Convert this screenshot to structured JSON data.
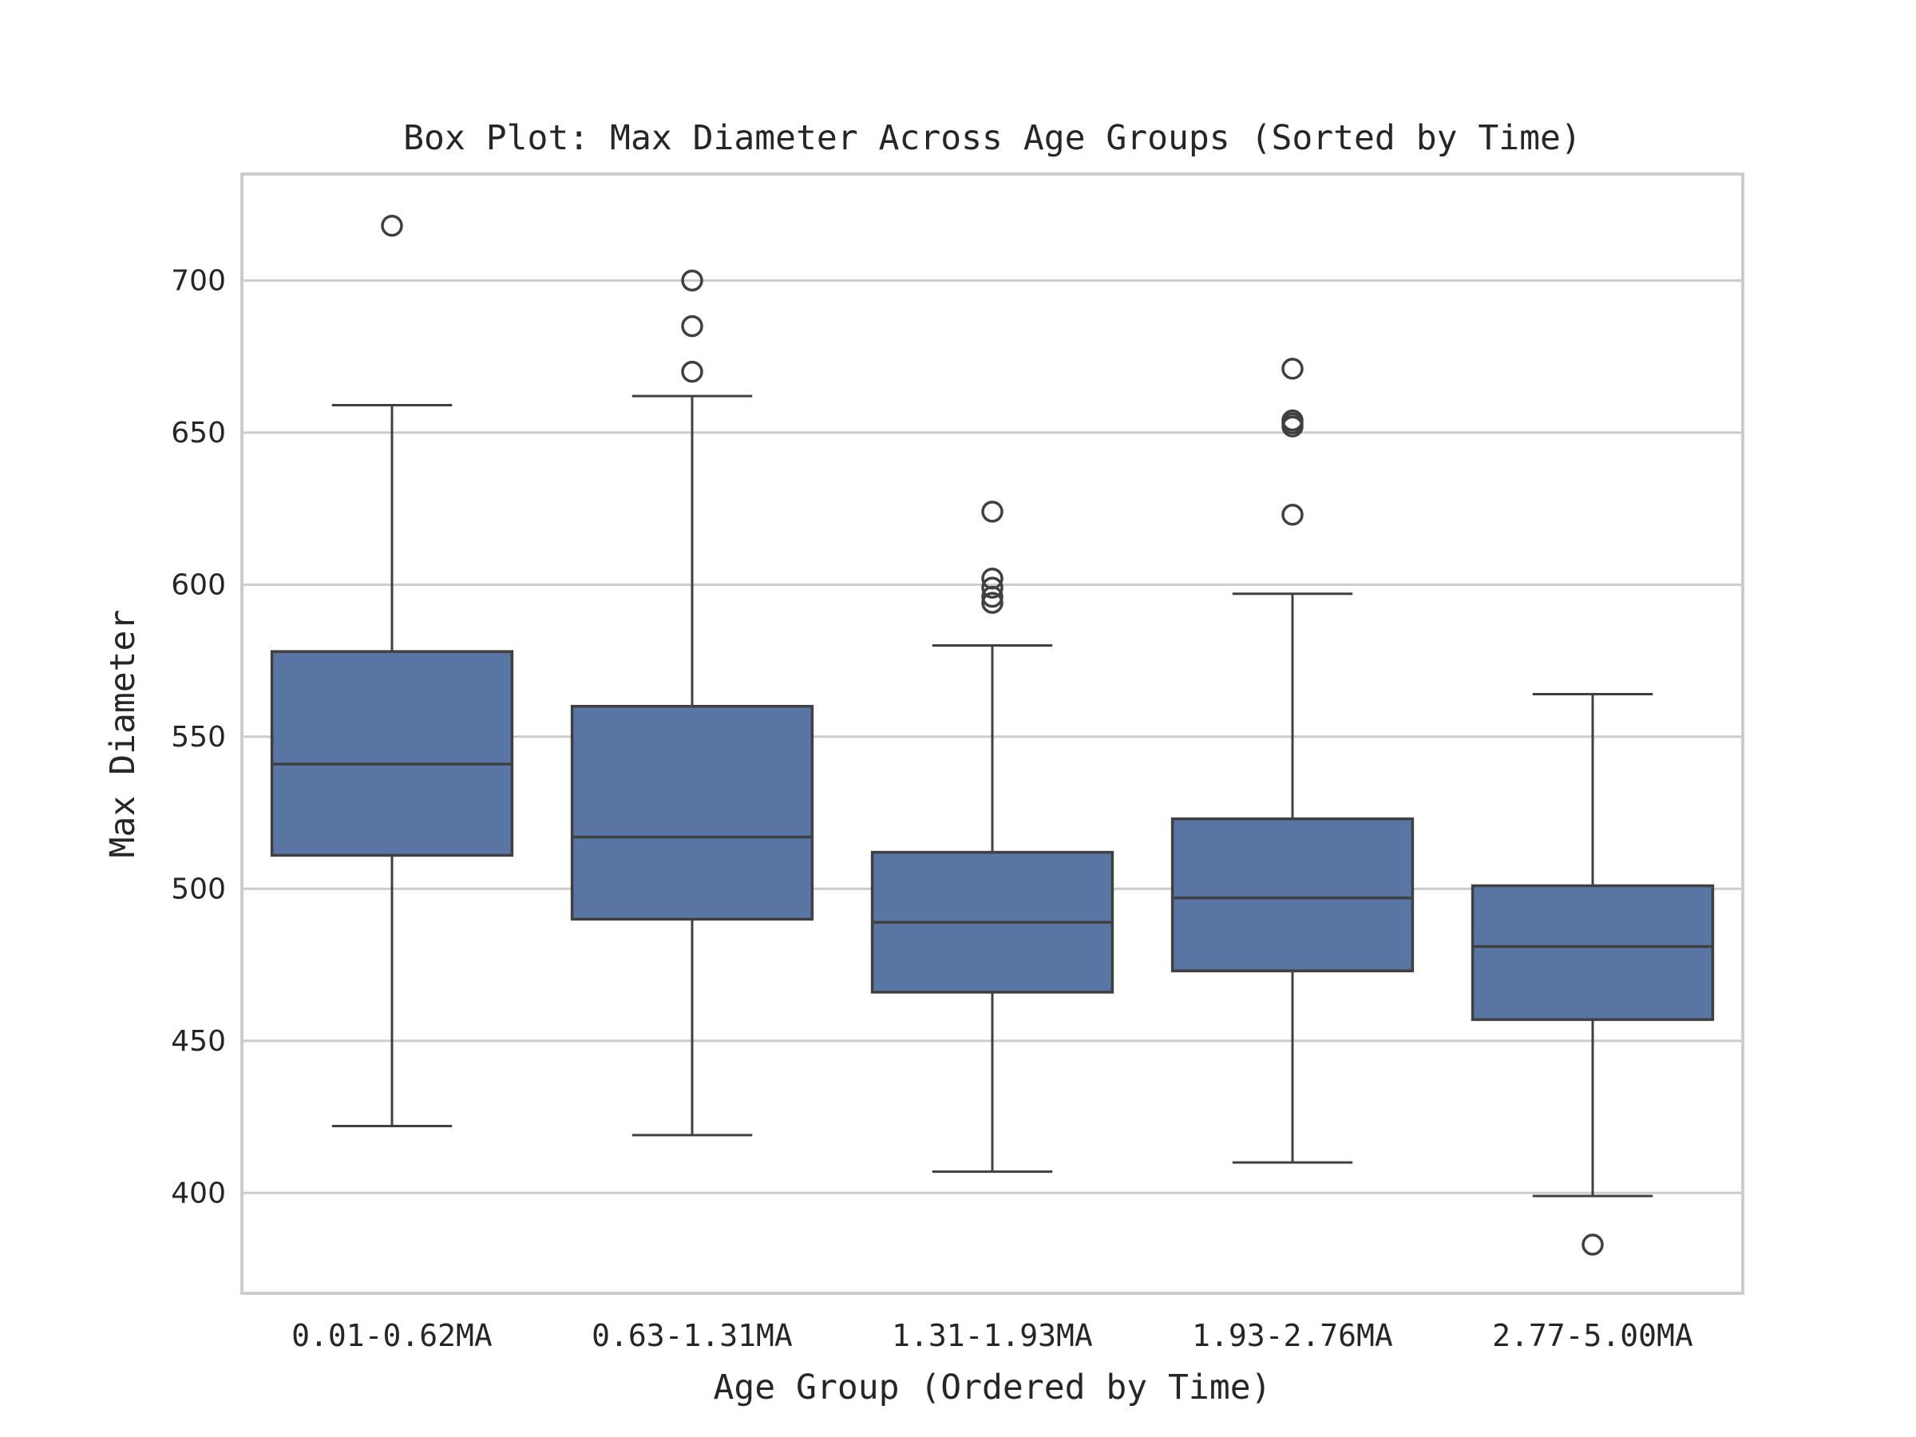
{
  "chart_data": {
    "type": "box",
    "title": "Box Plot: Max Diameter Across Age Groups (Sorted by Time)",
    "xlabel": "Age Group (Ordered by Time)",
    "ylabel": "Max Diameter",
    "categories": [
      "0.01-0.62MA",
      "0.63-1.31MA",
      "1.31-1.93MA",
      "1.93-2.76MA",
      "2.77-5.00MA"
    ],
    "ylim": [
      367,
      735
    ],
    "yticks": [
      400,
      450,
      500,
      550,
      600,
      650,
      700
    ],
    "grid": "horizontal",
    "box_color": "#5875a4",
    "line_color": "#404040",
    "boxes": [
      {
        "category": "0.01-0.62MA",
        "whisker_low": 422,
        "q1": 511,
        "median": 541,
        "q3": 578,
        "whisker_high": 659,
        "outliers": [
          718
        ]
      },
      {
        "category": "0.63-1.31MA",
        "whisker_low": 419,
        "q1": 490,
        "median": 517,
        "q3": 560,
        "whisker_high": 662,
        "outliers": [
          670,
          685,
          700
        ]
      },
      {
        "category": "1.31-1.93MA",
        "whisker_low": 407,
        "q1": 466,
        "median": 489,
        "q3": 512,
        "whisker_high": 580,
        "outliers": [
          594,
          596,
          599,
          602,
          624
        ]
      },
      {
        "category": "1.93-2.76MA",
        "whisker_low": 410,
        "q1": 473,
        "median": 497,
        "q3": 523,
        "whisker_high": 597,
        "outliers": [
          623,
          652,
          653,
          654,
          671
        ]
      },
      {
        "category": "2.77-5.00MA",
        "whisker_low": 399,
        "q1": 457,
        "median": 481,
        "q3": 501,
        "whisker_high": 564,
        "outliers": [
          383
        ]
      }
    ]
  }
}
